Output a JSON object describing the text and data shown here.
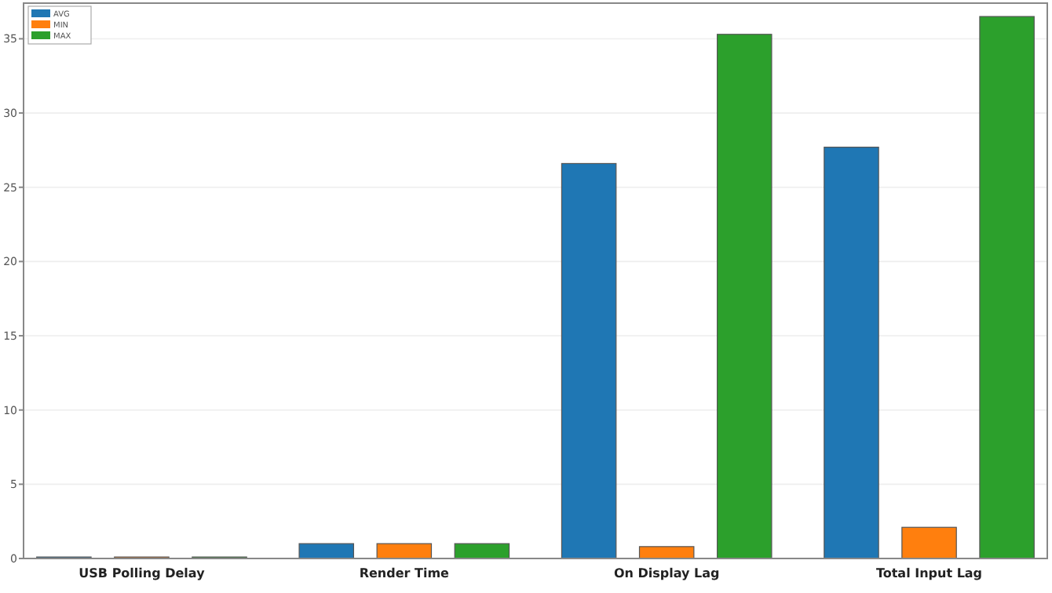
{
  "chart_data": {
    "type": "bar",
    "categories": [
      "USB Polling Delay",
      "Render Time",
      "On Display Lag",
      "Total Input Lag"
    ],
    "series": [
      {
        "name": "AVG",
        "color": "#1f77b4",
        "values": [
          0.1,
          1.0,
          26.6,
          27.7
        ]
      },
      {
        "name": "MIN",
        "color": "#ff7f0e",
        "values": [
          0.1,
          1.0,
          0.8,
          2.1
        ]
      },
      {
        "name": "MAX",
        "color": "#2ca02c",
        "values": [
          0.1,
          1.0,
          35.3,
          36.5
        ]
      }
    ],
    "ylim": [
      0,
      37.4
    ],
    "yticks": [
      0,
      5,
      10,
      15,
      20,
      25,
      30,
      35
    ],
    "grid": "y",
    "legend": "top left"
  }
}
